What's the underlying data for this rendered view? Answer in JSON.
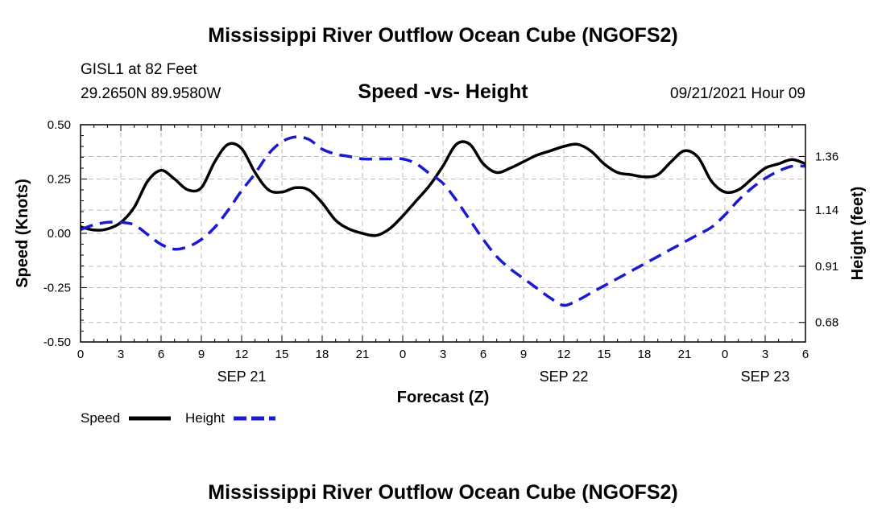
{
  "header": {
    "title": "Mississippi River Outflow Ocean Cube (NGOFS2)",
    "station": "GISL1 at 82 Feet",
    "coords": "29.2650N  89.9580W",
    "subtitle": "Speed -vs- Height",
    "timestamp": "09/21/2021 Hour 09"
  },
  "footer": {
    "title": "Mississippi River Outflow Ocean Cube (NGOFS2)"
  },
  "chart_data": {
    "type": "line",
    "title": "Speed -vs- Height",
    "xlabel": "Forecast (Z)",
    "ylabel": "Speed (Knots)",
    "y2label": "Height (feet)",
    "x_range": [
      0,
      54
    ],
    "ylim": [
      -0.5,
      0.5
    ],
    "y2lim": [
      0.6,
      1.49
    ],
    "grid": true,
    "x_ticks": [
      {
        "x": 0,
        "label": "0"
      },
      {
        "x": 3,
        "label": "3"
      },
      {
        "x": 6,
        "label": "6"
      },
      {
        "x": 9,
        "label": "9"
      },
      {
        "x": 12,
        "label": "12"
      },
      {
        "x": 15,
        "label": "15"
      },
      {
        "x": 18,
        "label": "18"
      },
      {
        "x": 21,
        "label": "21"
      },
      {
        "x": 24,
        "label": "0"
      },
      {
        "x": 27,
        "label": "3"
      },
      {
        "x": 30,
        "label": "6"
      },
      {
        "x": 33,
        "label": "9"
      },
      {
        "x": 36,
        "label": "12"
      },
      {
        "x": 39,
        "label": "15"
      },
      {
        "x": 42,
        "label": "18"
      },
      {
        "x": 45,
        "label": "21"
      },
      {
        "x": 48,
        "label": "0"
      },
      {
        "x": 51,
        "label": "3"
      },
      {
        "x": 54,
        "label": "6"
      }
    ],
    "date_labels": [
      {
        "x": 12,
        "label": "SEP 21"
      },
      {
        "x": 36,
        "label": "SEP 22"
      },
      {
        "x": 51,
        "label": "SEP 23"
      }
    ],
    "y_ticks": [
      {
        "value": 0.5,
        "label": "0.50"
      },
      {
        "value": 0.25,
        "label": "0.25"
      },
      {
        "value": 0.0,
        "label": "0.00"
      },
      {
        "value": -0.25,
        "label": "-0.25"
      },
      {
        "value": -0.5,
        "label": "-0.50"
      }
    ],
    "y2_ticks": [
      {
        "value": 1.36,
        "label": "1.36"
      },
      {
        "value": 1.14,
        "label": "1.14"
      },
      {
        "value": 0.91,
        "label": "0.91"
      },
      {
        "value": 0.68,
        "label": "0.68"
      }
    ],
    "series": [
      {
        "name": "Speed",
        "axis": "left",
        "color": "#000000",
        "dash": "solid",
        "x": [
          0,
          1,
          2,
          3,
          4,
          5,
          6,
          7,
          8,
          9,
          10,
          11,
          12,
          13,
          14,
          15,
          16,
          17,
          18,
          19,
          20,
          21,
          22,
          23,
          24,
          25,
          26,
          27,
          28,
          29,
          30,
          31,
          32,
          33,
          34,
          35,
          36,
          37,
          38,
          39,
          40,
          41,
          42,
          43,
          44,
          45,
          46,
          47,
          48,
          49,
          50,
          51,
          52,
          53,
          54
        ],
        "values": [
          0.03,
          0.015,
          0.02,
          0.05,
          0.12,
          0.24,
          0.29,
          0.25,
          0.2,
          0.21,
          0.33,
          0.41,
          0.39,
          0.28,
          0.2,
          0.19,
          0.21,
          0.2,
          0.14,
          0.06,
          0.02,
          0.0,
          -0.01,
          0.02,
          0.08,
          0.15,
          0.22,
          0.31,
          0.41,
          0.41,
          0.32,
          0.28,
          0.3,
          0.33,
          0.36,
          0.38,
          0.4,
          0.41,
          0.38,
          0.32,
          0.28,
          0.27,
          0.26,
          0.27,
          0.33,
          0.38,
          0.35,
          0.24,
          0.19,
          0.2,
          0.25,
          0.3,
          0.32,
          0.34,
          0.32
        ]
      },
      {
        "name": "Height",
        "axis": "right",
        "color": "#1a1ad0",
        "dash": "dashed",
        "x": [
          0,
          1,
          2,
          3,
          4,
          5,
          6,
          7,
          8,
          9,
          10,
          11,
          12,
          13,
          14,
          15,
          16,
          17,
          18,
          19,
          20,
          21,
          22,
          23,
          24,
          25,
          26,
          27,
          28,
          29,
          30,
          31,
          32,
          33,
          34,
          35,
          36,
          37,
          38,
          39,
          40,
          41,
          42,
          43,
          44,
          45,
          46,
          47,
          48,
          49,
          50,
          51,
          52,
          53,
          54
        ],
        "values": [
          1.06,
          1.08,
          1.09,
          1.09,
          1.08,
          1.04,
          1.0,
          0.98,
          0.99,
          1.02,
          1.07,
          1.14,
          1.22,
          1.29,
          1.37,
          1.42,
          1.44,
          1.43,
          1.39,
          1.37,
          1.36,
          1.35,
          1.35,
          1.35,
          1.35,
          1.33,
          1.29,
          1.25,
          1.18,
          1.1,
          1.02,
          0.95,
          0.9,
          0.86,
          0.82,
          0.78,
          0.75,
          0.77,
          0.8,
          0.83,
          0.86,
          0.89,
          0.92,
          0.95,
          0.98,
          1.01,
          1.04,
          1.07,
          1.12,
          1.18,
          1.23,
          1.27,
          1.3,
          1.32,
          1.32
        ]
      }
    ],
    "legend": [
      {
        "label": "Speed",
        "color": "#000000",
        "dash": "solid"
      },
      {
        "label": "Height",
        "color": "#1a1ad0",
        "dash": "dashed"
      }
    ]
  }
}
